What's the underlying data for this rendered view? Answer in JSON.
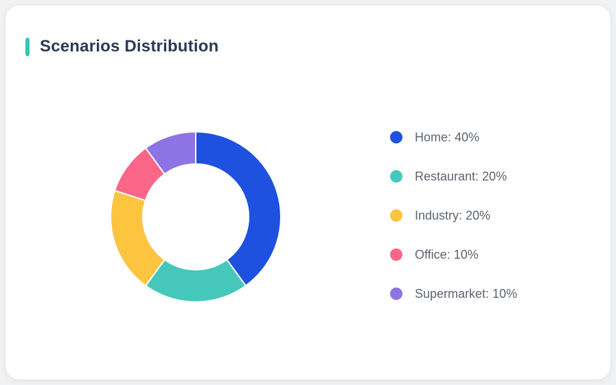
{
  "card": {
    "title": "Scenarios Distribution",
    "accent_color": "#35C6B9",
    "background": "#FFFFFF",
    "page_background": "#F0F2F4",
    "title_color": "#2B3A52"
  },
  "chart_data": {
    "type": "pie",
    "subtype": "donut",
    "title": "Scenarios Distribution",
    "categories": [
      "Home",
      "Restaurant",
      "Industry",
      "Office",
      "Supermarket"
    ],
    "values": [
      40,
      20,
      20,
      10,
      10
    ],
    "unit": "%",
    "colors": [
      "#1E51E0",
      "#45C8BB",
      "#FDC440",
      "#FA6688",
      "#8D73E3"
    ],
    "legend_position": "right",
    "legend_labels": [
      "Home: 40%",
      "Restaurant: 20%",
      "Industry: 20%",
      "Office: 10%",
      "Supermarket: 10%"
    ],
    "start_angle_deg": 0,
    "direction": "clockwise",
    "inner_radius_ratio": 0.62,
    "segment_gap_color": "#FFFFFF",
    "legend_text_color": "#5D636E"
  }
}
